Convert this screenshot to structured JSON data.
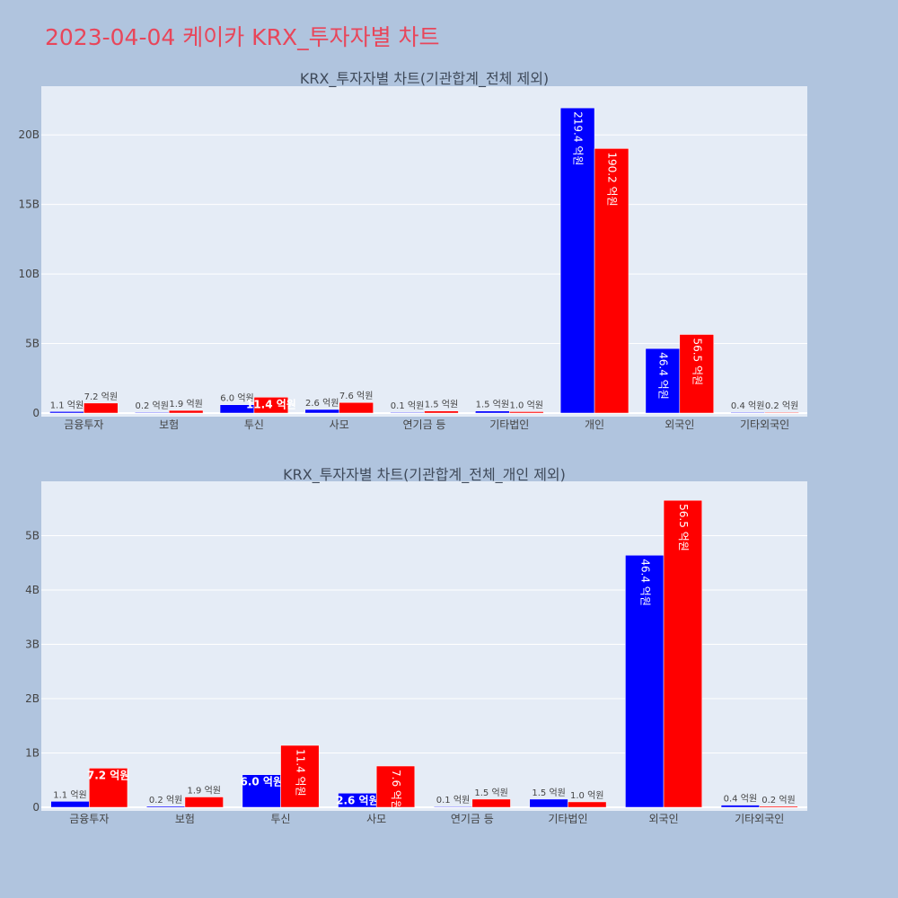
{
  "page": {
    "title": "2023-04-04 케이카 KRX_투자자별 차트"
  },
  "colors": {
    "background": "#b0c4de",
    "plot_bg": "#e5ecf6",
    "buy": "#0000ff",
    "sell": "#ff0000",
    "title": "#e8465a"
  },
  "chart_data": [
    {
      "type": "bar",
      "title": "KRX_투자자별 차트(기관합계_전체 제외)",
      "categories": [
        "금융투자",
        "보험",
        "투신",
        "사모",
        "연기금 등",
        "기타법인",
        "개인",
        "외국인",
        "기타외국인"
      ],
      "ylim": [
        0,
        2.35
      ],
      "yticks": [
        0,
        0.5,
        1.0,
        1.5,
        2.0
      ],
      "ytick_labels": [
        "0",
        "5B",
        "10B",
        "15B",
        "20B"
      ],
      "grid": true,
      "series": [
        {
          "color": "#0000ff",
          "values": [
            0.011,
            0.002,
            0.06,
            0.026,
            0.001,
            0.015,
            2.194,
            0.464,
            0.004
          ],
          "labels": [
            "1.1 억원",
            "0.2 억원",
            "6.0 억원",
            "2.6 억원",
            "0.1 억원",
            "1.5 억원",
            "219.4 억원",
            "46.4 억원",
            "0.4 억원"
          ]
        },
        {
          "color": "#ff0000",
          "values": [
            0.072,
            0.019,
            0.114,
            0.076,
            0.015,
            0.01,
            1.902,
            0.565,
            0.002
          ],
          "labels": [
            "7.2 억원",
            "1.9 억원",
            "11.4 억원",
            "7.6 억원",
            "1.5 억원",
            "1.0 억원",
            "190.2 억원",
            "56.5 억원",
            "0.2 억원"
          ]
        }
      ]
    },
    {
      "type": "bar",
      "title": "KRX_투자자별 차트(기관합계_전체_개인 제외)",
      "categories": [
        "금융투자",
        "보험",
        "투신",
        "사모",
        "연기금 등",
        "기타법인",
        "외국인",
        "기타외국인"
      ],
      "ylim": [
        0,
        0.6
      ],
      "yticks": [
        0,
        0.1,
        0.2,
        0.3,
        0.4,
        0.5
      ],
      "ytick_labels": [
        "0",
        "1B",
        "2B",
        "3B",
        "4B",
        "5B"
      ],
      "grid": true,
      "series": [
        {
          "color": "#0000ff",
          "values": [
            0.011,
            0.002,
            0.06,
            0.026,
            0.001,
            0.015,
            0.464,
            0.004
          ],
          "labels": [
            "1.1 억원",
            "0.2 억원",
            "6.0 억원",
            "2.6 억원",
            "0.1 억원",
            "1.5 억원",
            "46.4 억원",
            "0.4 억원"
          ]
        },
        {
          "color": "#ff0000",
          "values": [
            0.072,
            0.019,
            0.114,
            0.076,
            0.015,
            0.01,
            0.565,
            0.002
          ],
          "labels": [
            "7.2 억원",
            "1.9 억원",
            "11.4 억원",
            "7.6 억원",
            "1.5 억원",
            "1.0 억원",
            "56.5 억원",
            "0.2 억원"
          ]
        }
      ]
    }
  ]
}
